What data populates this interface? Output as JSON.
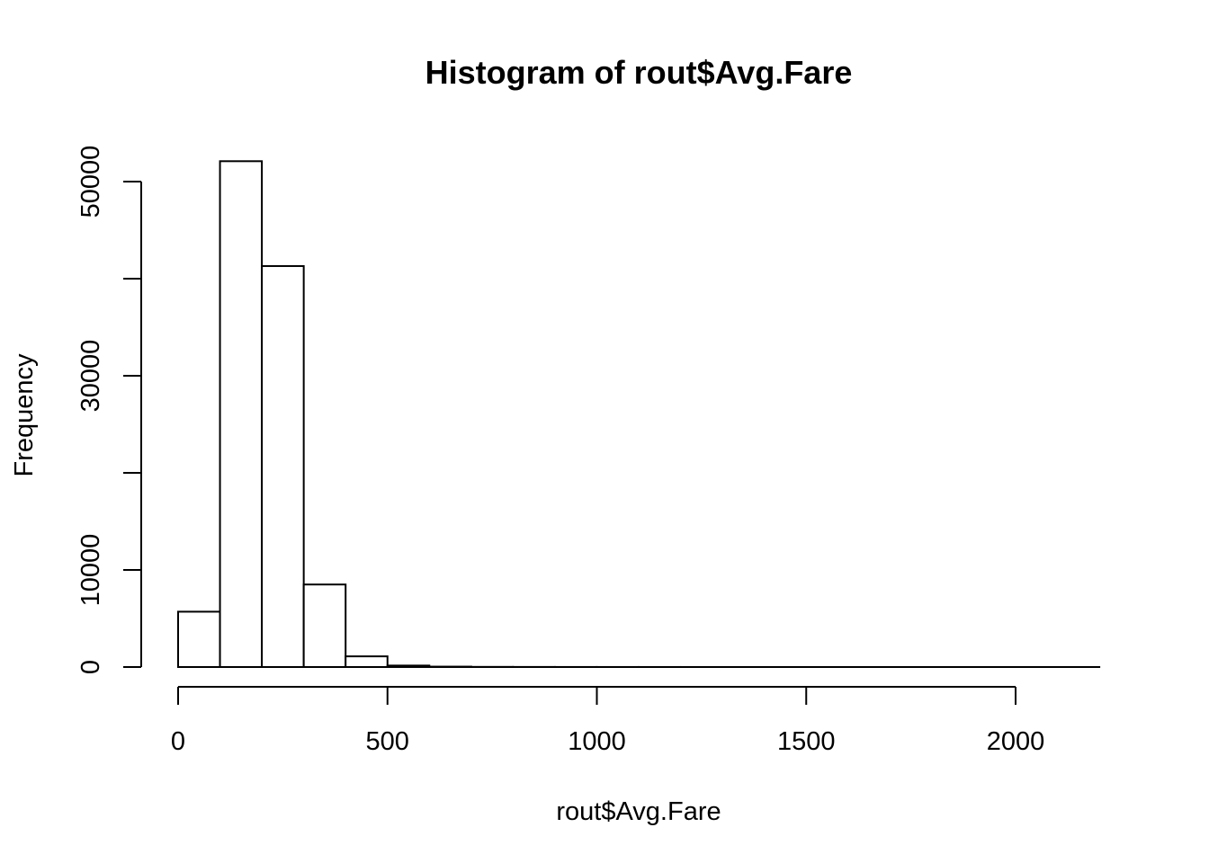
{
  "chart_data": {
    "type": "bar",
    "title": "Histogram of rout$Avg.Fare",
    "xlabel": "rout$Avg.Fare",
    "ylabel": "Frequency",
    "bin_edges": [
      0,
      100,
      200,
      300,
      400,
      500,
      600,
      700,
      800,
      900,
      1000,
      1100,
      1200,
      1300,
      1400,
      1500,
      1600,
      1700,
      1800,
      1900,
      2000,
      2100,
      2200
    ],
    "values": [
      5700,
      52100,
      41300,
      8500,
      1100,
      150,
      40,
      15,
      8,
      5,
      4,
      3,
      2,
      2,
      1,
      1,
      1,
      1,
      1,
      1,
      1,
      1
    ],
    "xlim": [
      0,
      2200
    ],
    "ylim": [
      0,
      52100
    ],
    "xticks": [
      0,
      500,
      1000,
      1500,
      2000
    ],
    "xtick_labels": [
      "0",
      "500",
      "1000",
      "1500",
      "2000"
    ],
    "yticks": [
      0,
      10000,
      20000,
      30000,
      40000,
      50000
    ],
    "ytick_labels": [
      "0",
      "10000",
      "",
      "30000",
      "",
      "50000"
    ],
    "bar_fill": "#ffffff",
    "bar_stroke": "#000000",
    "grid": false,
    "legend": "none"
  }
}
